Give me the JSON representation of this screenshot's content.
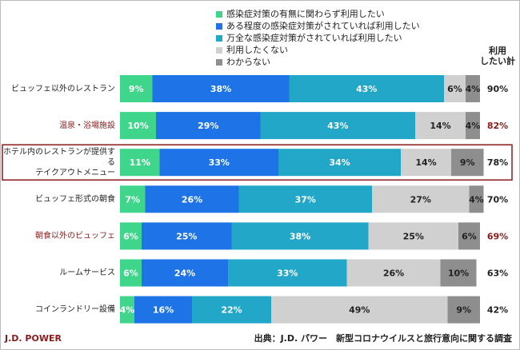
{
  "chart_data": {
    "type": "stacked-bar-horizontal",
    "categories": [
      "ビュッフェ以外のレストラン",
      "温泉・浴場施設",
      "ホテル内のレストランが提供する\nテイクアウトメニュー",
      "ビュッフェ形式の朝食",
      "朝食以外のビュッフェ",
      "ルームサービス",
      "コインランドリー設備"
    ],
    "category_colors": [
      "#222222",
      "#8b1a1a",
      "#222222",
      "#222222",
      "#8b1a1a",
      "#222222",
      "#222222"
    ],
    "highlight": 2,
    "highlight_color": "#8b1a1a",
    "xlim": [
      0,
      100
    ],
    "series": [
      {
        "name": "感染症対策の有無に関わらず利用したい",
        "color": "#3fd68c",
        "label_color": "#ffffff",
        "values": [
          9,
          10,
          11,
          7,
          6,
          6,
          4
        ],
        "value_labels": [
          "9%",
          "10%",
          "11%",
          "7%",
          "6%",
          "6%",
          "4%"
        ]
      },
      {
        "name": "ある程度の感染症対策がされていれば利用したい",
        "color": "#1e74e6",
        "label_color": "#ffffff",
        "values": [
          38,
          29,
          33,
          26,
          25,
          24,
          16
        ],
        "value_labels": [
          "38%",
          "29%",
          "33%",
          "26%",
          "25%",
          "24%",
          "16%"
        ]
      },
      {
        "name": "万全な感染症対策がされていれば利用したい",
        "color": "#22a7c8",
        "label_color": "#ffffff",
        "values": [
          43,
          43,
          34,
          37,
          38,
          33,
          22
        ],
        "value_labels": [
          "43%",
          "43%",
          "34%",
          "37%",
          "38%",
          "33%",
          "22%"
        ]
      },
      {
        "name": "利用したくない",
        "color": "#d0d0d0",
        "label_color": "#222222",
        "values": [
          6,
          14,
          14,
          27,
          25,
          26,
          49
        ],
        "value_labels": [
          "6%",
          "14%",
          "14%",
          "27%",
          "25%",
          "26%",
          "49%"
        ]
      },
      {
        "name": "わからない",
        "color": "#8e8e8e",
        "label_color": "#222222",
        "values": [
          4,
          4,
          9,
          4,
          6,
          10,
          9
        ],
        "value_labels": [
          "4%",
          "4%",
          "9%",
          "4%",
          "6%",
          "10%",
          "9%"
        ]
      }
    ],
    "totals": {
      "header": [
        "利用",
        "したい計"
      ],
      "values": [
        90,
        82,
        78,
        70,
        69,
        63,
        42
      ],
      "value_labels": [
        "90%",
        "82%",
        "78%",
        "70%",
        "69%",
        "63%",
        "42%"
      ],
      "colors": [
        "#222222",
        "#8b1a1a",
        "#222222",
        "#222222",
        "#8b1a1a",
        "#222222",
        "#222222"
      ]
    },
    "source": "出典：J.D. パワー　新型コロナウイルスと旅行意向に関する調査",
    "logo": "J.D. POWER"
  }
}
